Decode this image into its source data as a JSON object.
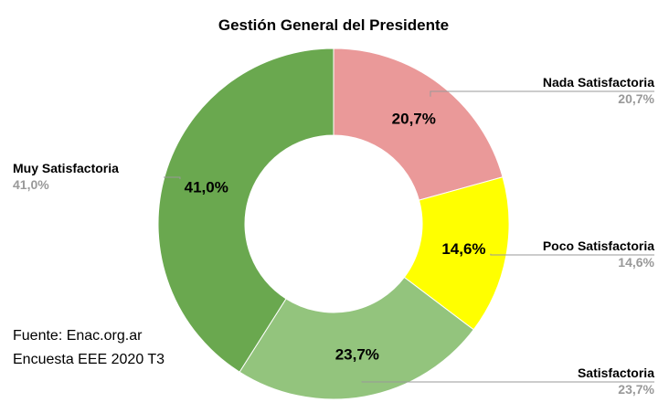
{
  "chart_data": {
    "type": "pie",
    "donut": true,
    "title": "Gestión General del Presidente",
    "slices": [
      {
        "label": "Nada Satisfactoria",
        "value": 20.7,
        "display": "20,7%",
        "color": "#ea9999"
      },
      {
        "label": "Poco Satisfactoria",
        "value": 14.6,
        "display": "14,6%",
        "color": "#ffff00"
      },
      {
        "label": "Satisfactoria",
        "value": 23.7,
        "display": "23,7%",
        "color": "#93c47d"
      },
      {
        "label": "Muy Satisfactoria",
        "value": 41.0,
        "display": "41,0%",
        "color": "#6aa84f"
      }
    ],
    "annotations": [
      "Fuente: Enac.org.ar",
      "Encuesta EEE 2020 T3"
    ]
  }
}
